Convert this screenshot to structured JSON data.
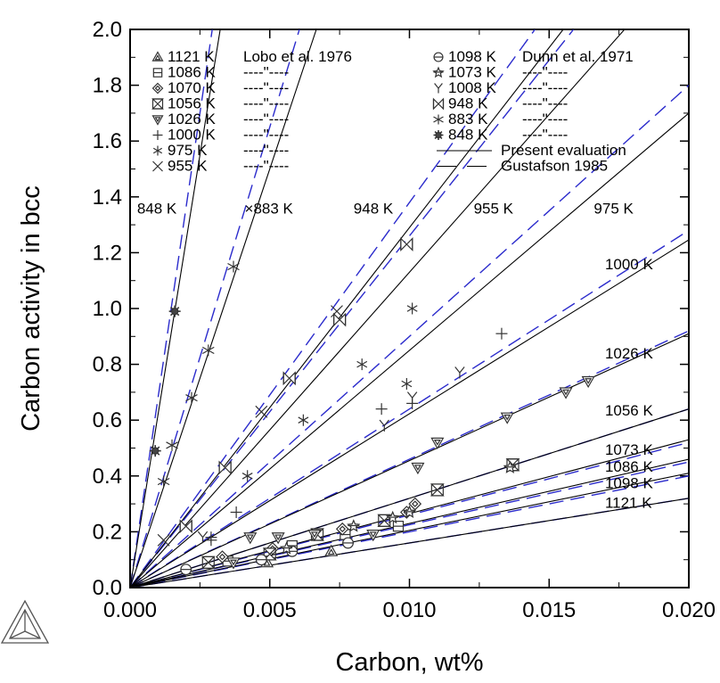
{
  "chart_data": {
    "type": "scatter",
    "xlabel": "Carbon, wt%",
    "ylabel": "Carbon activity in bcc",
    "xlim": [
      0,
      0.02
    ],
    "ylim": [
      0,
      2.0
    ],
    "x_ticks": [
      "0.000",
      "0.005",
      "0.010",
      "0.015",
      "0.020"
    ],
    "y_ticks": [
      "0.0",
      "0.2",
      "0.4",
      "0.6",
      "0.8",
      "1.0",
      "1.2",
      "1.4",
      "1.6",
      "1.8",
      "2.0"
    ],
    "grid": false,
    "legend_position": "top-left",
    "legend": {
      "left": [
        {
          "marker": "triangle",
          "temp": "1121 K",
          "source": "Lobo et al. 1976"
        },
        {
          "marker": "square",
          "temp": "1086 K",
          "source": "----\"----"
        },
        {
          "marker": "diamond",
          "temp": "1070 K",
          "source": "----\"----"
        },
        {
          "marker": "hourglass",
          "temp": "1056 K",
          "source": "----\"----"
        },
        {
          "marker": "triangle-down",
          "temp": "1026 K",
          "source": "----\"----"
        },
        {
          "marker": "plus",
          "temp": "1000 K",
          "source": "----\"----"
        },
        {
          "marker": "asterisk",
          "temp": "975 K",
          "source": "----\"----"
        },
        {
          "marker": "x",
          "temp": "955 K",
          "source": "----\"----"
        }
      ],
      "right": [
        {
          "marker": "circle",
          "temp": "1098 K",
          "source": "Dunn et al.  1971"
        },
        {
          "marker": "star",
          "temp": "1073 K",
          "source": "----\"----"
        },
        {
          "marker": "y",
          "temp": "1008 K",
          "source": "----\"----"
        },
        {
          "marker": "bowtie",
          "temp": "948 K",
          "source": "----\"----"
        },
        {
          "marker": "x-star",
          "temp": "883 K",
          "source": "----\"----"
        },
        {
          "marker": "gear",
          "temp": "848 K",
          "source": "----\"----"
        }
      ],
      "lines": [
        {
          "style": "solid",
          "label": "Present evaluation"
        },
        {
          "style": "dashed",
          "label": "Gustafson 1985"
        }
      ]
    },
    "colors": {
      "present": "#000000",
      "gustafson": "#2b2bcc",
      "markers": "#333333"
    },
    "curve_labels": [
      {
        "text": "848 K",
        "x": 0.00025,
        "y": 1.36
      },
      {
        "text": "×883 K",
        "x": 0.0041,
        "y": 1.36
      },
      {
        "text": "948 K",
        "x": 0.008,
        "y": 1.36
      },
      {
        "text": "955 K",
        "x": 0.0123,
        "y": 1.36
      },
      {
        "text": "975 K",
        "x": 0.0166,
        "y": 1.36
      },
      {
        "text": "1000 K",
        "x": 0.017,
        "y": 1.16
      },
      {
        "text": "1026 K",
        "x": 0.017,
        "y": 0.84
      },
      {
        "text": "1056 K",
        "x": 0.017,
        "y": 0.635
      },
      {
        "text": "1073 K",
        "x": 0.017,
        "y": 0.495
      },
      {
        "text": "1086 K",
        "x": 0.017,
        "y": 0.435
      },
      {
        "text": "1098 K",
        "x": 0.017,
        "y": 0.375
      },
      {
        "text": "1121 K",
        "x": 0.017,
        "y": 0.305
      }
    ],
    "present_lines": [
      {
        "temp": "848 K",
        "slope": 620
      },
      {
        "temp": "883 K",
        "slope": 300
      },
      {
        "temp": "948 K",
        "slope": 129
      },
      {
        "temp": "955 K",
        "slope": 113
      },
      {
        "temp": "975 K",
        "slope": 85
      },
      {
        "temp": "1000 K",
        "slope": 62.3
      },
      {
        "temp": "1026 K",
        "slope": 45.5
      },
      {
        "temp": "1056 K",
        "slope": 32
      },
      {
        "temp": "1073 K",
        "slope": 26.5
      },
      {
        "temp": "1086 K",
        "slope": 23
      },
      {
        "temp": "1098 K",
        "slope": 20.5
      },
      {
        "temp": "1121 K",
        "slope": 16
      }
    ],
    "gustafson_lines": [
      {
        "temp": "848 K",
        "slope": 680
      },
      {
        "temp": "883 K",
        "slope": 330
      },
      {
        "temp": "948 K",
        "slope": 138
      },
      {
        "temp": "955 K",
        "slope": 126
      },
      {
        "temp": "975 K",
        "slope": 90
      },
      {
        "temp": "1000 K",
        "slope": 64
      },
      {
        "temp": "1026 K",
        "slope": 46
      },
      {
        "temp": "1056 K",
        "slope": 32
      },
      {
        "temp": "1073 K",
        "slope": 26
      },
      {
        "temp": "1086 K",
        "slope": 22.5
      },
      {
        "temp": "1098 K",
        "slope": 20
      },
      {
        "temp": "1121 K",
        "slope": 16
      }
    ],
    "series": [
      {
        "name": "1121 K",
        "marker": "triangle",
        "points": [
          [
            0.0049,
            0.09
          ],
          [
            0.0072,
            0.13
          ]
        ]
      },
      {
        "name": "1086 K",
        "marker": "square",
        "points": [
          [
            0.0035,
            0.095
          ],
          [
            0.0058,
            0.15
          ],
          [
            0.0077,
            0.19
          ],
          [
            0.0096,
            0.22
          ]
        ]
      },
      {
        "name": "1070 K",
        "marker": "diamond",
        "points": [
          [
            0.0033,
            0.11
          ],
          [
            0.0051,
            0.14
          ],
          [
            0.0076,
            0.21
          ],
          [
            0.0099,
            0.27
          ],
          [
            0.0102,
            0.3
          ]
        ]
      },
      {
        "name": "1056 K",
        "marker": "hourglass",
        "points": [
          [
            0.0028,
            0.09
          ],
          [
            0.005,
            0.12
          ],
          [
            0.0067,
            0.19
          ],
          [
            0.0091,
            0.24
          ],
          [
            0.011,
            0.35
          ],
          [
            0.0137,
            0.44
          ]
        ]
      },
      {
        "name": "1026 K",
        "marker": "triangle-down",
        "points": [
          [
            0.0037,
            0.09
          ],
          [
            0.0043,
            0.18
          ],
          [
            0.0053,
            0.18
          ],
          [
            0.0066,
            0.19
          ],
          [
            0.0087,
            0.19
          ],
          [
            0.0103,
            0.43
          ],
          [
            0.011,
            0.52
          ],
          [
            0.0135,
            0.61
          ],
          [
            0.0156,
            0.7
          ],
          [
            0.0164,
            0.74
          ]
        ]
      },
      {
        "name": "1000 K",
        "marker": "plus",
        "points": [
          [
            0.0029,
            0.17
          ],
          [
            0.0029,
            0.18
          ],
          [
            0.0038,
            0.27
          ],
          [
            0.009,
            0.64
          ],
          [
            0.0101,
            0.66
          ],
          [
            0.0133,
            0.91
          ]
        ]
      },
      {
        "name": "975 K",
        "marker": "asterisk",
        "points": [
          [
            0.0042,
            0.4
          ],
          [
            0.0062,
            0.6
          ],
          [
            0.0083,
            0.8
          ],
          [
            0.0099,
            0.73
          ],
          [
            0.0101,
            1.0
          ]
        ]
      },
      {
        "name": "955 K",
        "marker": "x",
        "points": [
          [
            0.0012,
            0.17
          ],
          [
            0.0047,
            0.63
          ],
          [
            0.0074,
            0.99
          ]
        ]
      },
      {
        "name": "1098 K",
        "marker": "circle",
        "points": [
          [
            0.002,
            0.065
          ],
          [
            0.0047,
            0.1
          ],
          [
            0.0058,
            0.13
          ],
          [
            0.0078,
            0.16
          ]
        ]
      },
      {
        "name": "1073 K",
        "marker": "star",
        "points": [
          [
            0.0056,
            0.14
          ],
          [
            0.008,
            0.22
          ],
          [
            0.0094,
            0.25
          ],
          [
            0.01,
            0.27
          ],
          [
            0.0136,
            0.43
          ]
        ]
      },
      {
        "name": "1008 K",
        "marker": "y",
        "points": [
          [
            0.0026,
            0.18
          ],
          [
            0.0091,
            0.58
          ],
          [
            0.0101,
            0.68
          ],
          [
            0.0118,
            0.77
          ]
        ]
      },
      {
        "name": "948 K",
        "marker": "bowtie",
        "points": [
          [
            0.002,
            0.22
          ],
          [
            0.0034,
            0.43
          ],
          [
            0.0057,
            0.75
          ],
          [
            0.0075,
            0.96
          ],
          [
            0.0099,
            1.23
          ]
        ]
      },
      {
        "name": "883 K",
        "marker": "x-star",
        "points": [
          [
            0.0012,
            0.38
          ],
          [
            0.0015,
            0.51
          ],
          [
            0.0022,
            0.68
          ],
          [
            0.0028,
            0.85
          ],
          [
            0.0037,
            1.15
          ]
        ]
      },
      {
        "name": "848 K",
        "marker": "gear",
        "points": [
          [
            0.0009,
            0.49
          ],
          [
            0.0016,
            0.99
          ]
        ]
      }
    ]
  }
}
